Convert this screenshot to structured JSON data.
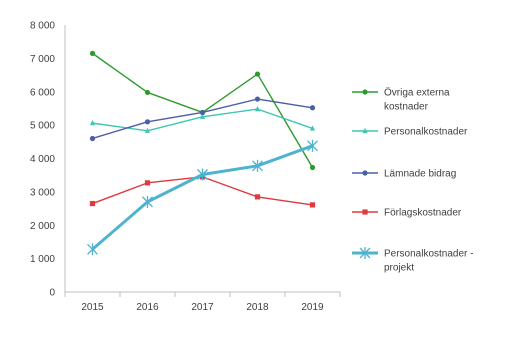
{
  "chart_data": {
    "type": "line",
    "title": "",
    "xlabel": "",
    "ylabel": "",
    "categories": [
      "2015",
      "2016",
      "2017",
      "2018",
      "2019"
    ],
    "ylim": [
      0,
      8000
    ],
    "yticks": [
      0,
      1000,
      2000,
      3000,
      4000,
      5000,
      6000,
      7000,
      8000
    ],
    "ytick_labels": [
      "0",
      "1 000",
      "2 000",
      "3 000",
      "4 000",
      "5 000",
      "6 000",
      "7 000",
      "8 000"
    ],
    "grid": false,
    "legend_position": "right",
    "series": [
      {
        "name": "Övriga externa kostnader",
        "legend_lines": [
          "Övriga externa",
          "kostnader"
        ],
        "color": "#2e9a2e",
        "marker": "circle",
        "values": [
          7150,
          5980,
          5380,
          6530,
          3730
        ]
      },
      {
        "name": "Personalkostnader",
        "legend_lines": [
          "Personalkostnader"
        ],
        "color": "#3fc6b0",
        "marker": "triangle",
        "values": [
          5060,
          4830,
          5250,
          5480,
          4900
        ]
      },
      {
        "name": "Lämnade bidrag",
        "legend_lines": [
          "Lämnade bidrag"
        ],
        "color": "#4a5fa6",
        "marker": "circle",
        "values": [
          4600,
          5100,
          5380,
          5780,
          5520
        ]
      },
      {
        "name": "Förlagskostnader",
        "legend_lines": [
          "Förlagskostnader"
        ],
        "color": "#e0393e",
        "marker": "square",
        "values": [
          2650,
          3270,
          3450,
          2850,
          2610
        ]
      },
      {
        "name": "Personalkostnader - projekt",
        "legend_lines": [
          "Personalkostnader -",
          "projekt"
        ],
        "color": "#4db3cf",
        "marker": "star",
        "values": [
          1280,
          2700,
          3520,
          3780,
          4380
        ]
      }
    ]
  }
}
